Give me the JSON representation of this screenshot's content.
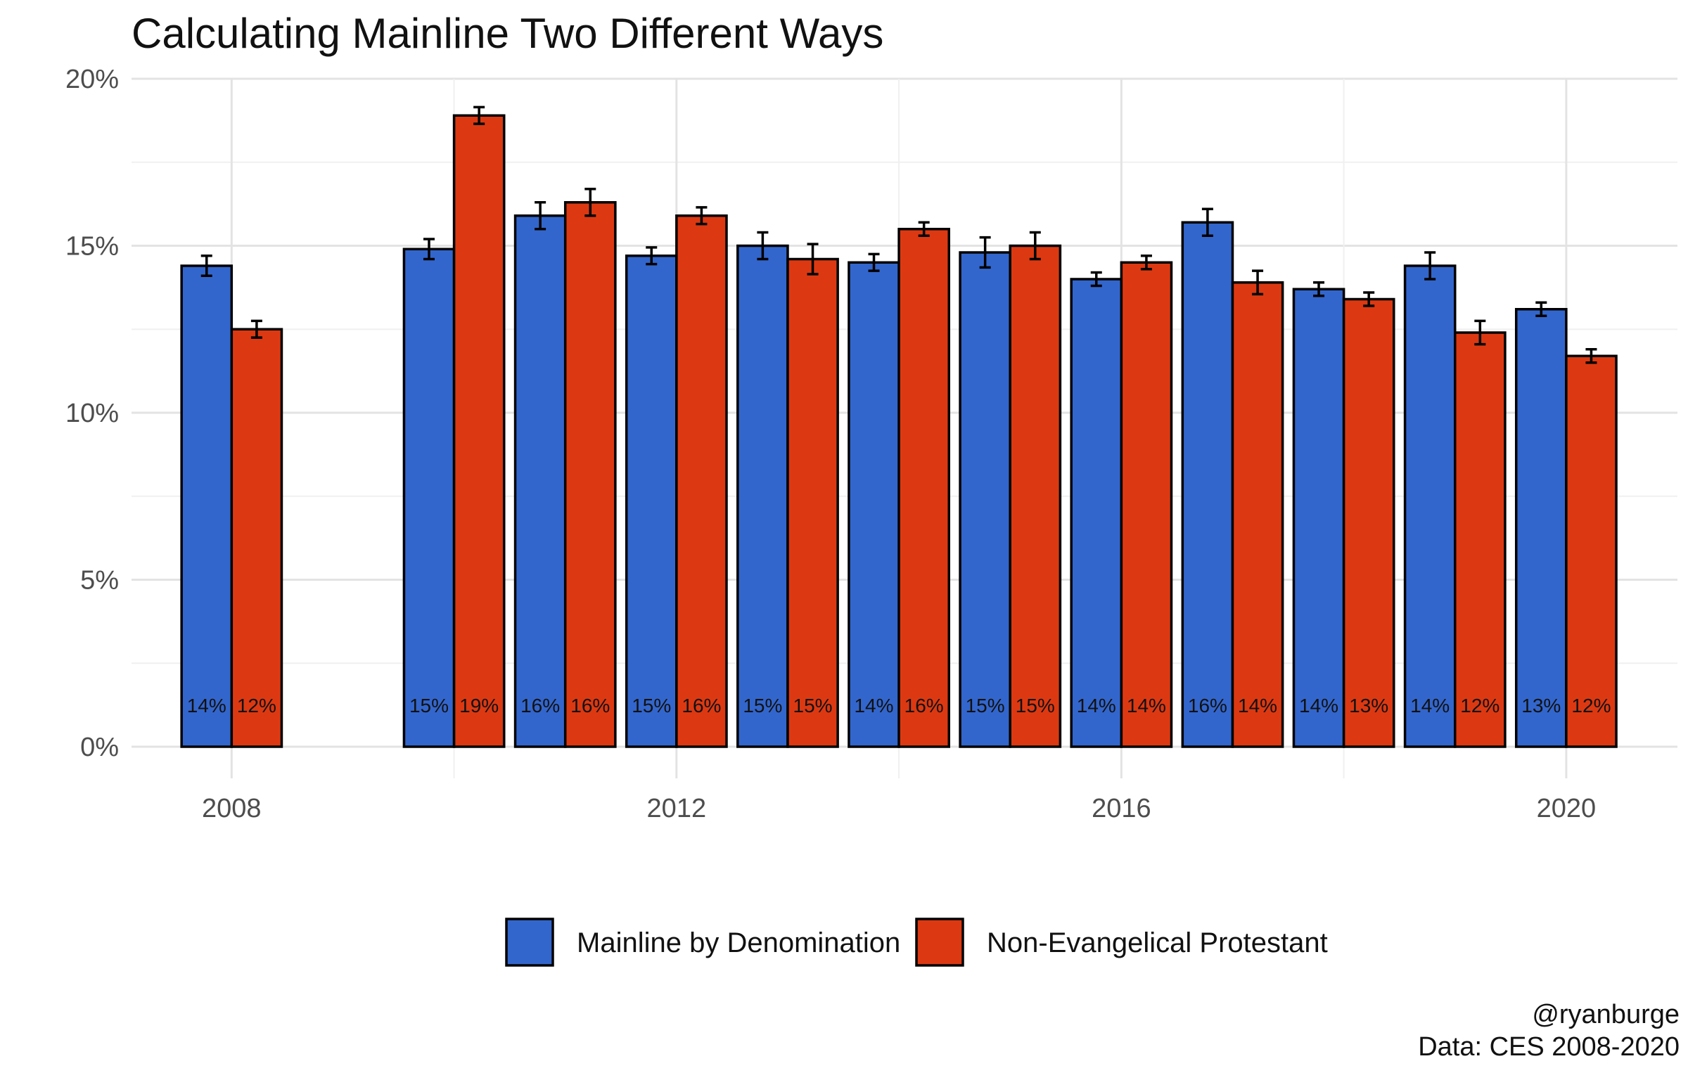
{
  "chart_data": {
    "type": "bar",
    "title": "Calculating Mainline Two Different Ways",
    "xlabel": "",
    "ylabel": "",
    "x": [
      2008,
      2010,
      2011,
      2012,
      2013,
      2014,
      2015,
      2016,
      2017,
      2018,
      2019,
      2020
    ],
    "x_ticks": [
      "2008",
      "2012",
      "2016",
      "2020"
    ],
    "ylim": [
      0,
      20
    ],
    "y_ticks": [
      "0%",
      "5%",
      "10%",
      "15%",
      "20%"
    ],
    "grid": true,
    "legend_position": "bottom",
    "series": [
      {
        "name": "Mainline by Denomination",
        "color": "#3366cc",
        "values": [
          14.4,
          14.9,
          15.9,
          14.7,
          15.0,
          14.5,
          14.8,
          14.0,
          15.7,
          13.7,
          14.4,
          13.1
        ],
        "errors": [
          0.3,
          0.3,
          0.4,
          0.25,
          0.4,
          0.25,
          0.45,
          0.2,
          0.4,
          0.2,
          0.4,
          0.2
        ],
        "labels": [
          "14%",
          "15%",
          "16%",
          "15%",
          "15%",
          "14%",
          "15%",
          "14%",
          "16%",
          "14%",
          "14%",
          "13%"
        ]
      },
      {
        "name": "Non-Evangelical Protestant",
        "color": "#dc3912",
        "values": [
          12.5,
          18.9,
          16.3,
          15.9,
          14.6,
          15.5,
          15.0,
          14.5,
          13.9,
          13.4,
          12.4,
          11.7
        ],
        "errors": [
          0.25,
          0.25,
          0.4,
          0.25,
          0.45,
          0.2,
          0.4,
          0.2,
          0.35,
          0.2,
          0.35,
          0.2
        ],
        "labels": [
          "12%",
          "19%",
          "16%",
          "16%",
          "15%",
          "16%",
          "15%",
          "14%",
          "14%",
          "13%",
          "12%",
          "12%"
        ]
      }
    ],
    "caption": [
      "@ryanburge",
      "Data: CES 2008-2020"
    ]
  }
}
